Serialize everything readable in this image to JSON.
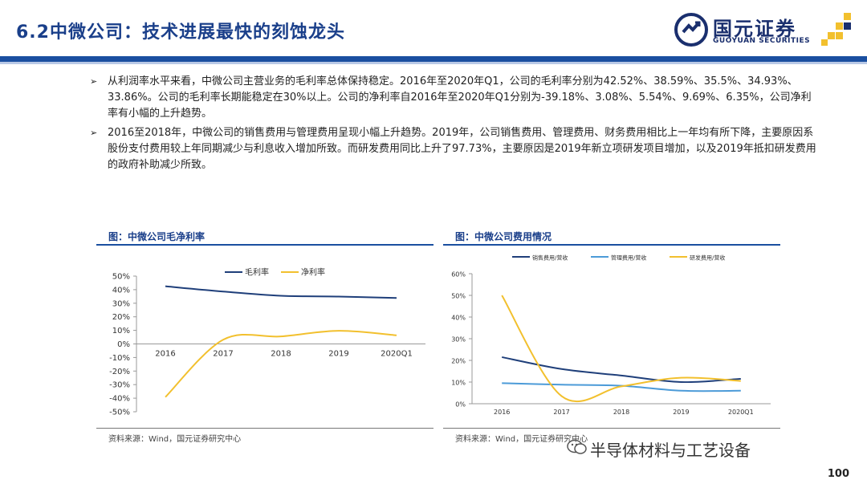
{
  "header": {
    "title": "6.2中微公司：技术进展最快的刻蚀龙头",
    "logo_cn": "国元证券",
    "logo_en": "GUOYUAN SECURITIES"
  },
  "bullets": [
    "从利润率水平来看，中微公司主营业务的毛利率总体保持稳定。2016年至2020年Q1，公司的毛利率分别为42.52%、38.59%、35.5%、34.93%、33.86%。公司的毛利率长期能稳定在30%以上。公司的净利率自2016年至2020年Q1分别为-39.18%、3.08%、5.54%、9.69%、6.35%，公司净利率有小幅的上升趋势。",
    "2016至2018年，中微公司的销售费用与管理费用呈现小幅上升趋势。2019年，公司销售费用、管理费用、财务费用相比上一年均有所下降，主要原因系股份支付费用较上年同期减少与利息收入增加所致。而研发费用同比上升了97.73%，主要原因是2019年新立项研发项目增加，以及2019年抵扣研发费用的政府补助减少所致。"
  ],
  "left_caption": "图：中微公司毛净利率",
  "right_caption": "图：中微公司费用情况",
  "left_source": "资料来源：Wind，国元证券研究中心",
  "right_source": "资料来源：Wind，国元证券研究中心",
  "watermark": "半导体材料与工艺设备",
  "page_number": "100",
  "colors": {
    "navy": "#1f3f7a",
    "gold": "#f2c02e",
    "lightblue": "#4c9bd8"
  },
  "chart_data": [
    {
      "type": "line",
      "title": "中微公司毛净利率",
      "categories": [
        "2016",
        "2017",
        "2018",
        "2019",
        "2020Q1"
      ],
      "series": [
        {
          "name": "毛利率",
          "values": [
            42.52,
            38.59,
            35.5,
            34.93,
            33.86
          ]
        },
        {
          "name": "净利率",
          "values": [
            -39.18,
            3.08,
            5.54,
            9.69,
            6.35
          ]
        }
      ],
      "yticks": [
        "50%",
        "40%",
        "30%",
        "20%",
        "10%",
        "0%",
        "-10%",
        "-20%",
        "-30%",
        "-40%",
        "-50%"
      ],
      "ylim": [
        -50,
        50
      ],
      "legend": "top"
    },
    {
      "type": "line",
      "title": "中微公司费用情况",
      "categories": [
        "2016",
        "2017",
        "2018",
        "2019",
        "2020Q1"
      ],
      "series": [
        {
          "name": "销售费用/营收",
          "values": [
            21.5,
            16,
            13,
            10,
            11.5
          ]
        },
        {
          "name": "管理费用/营收",
          "values": [
            9.5,
            8.8,
            8.3,
            6,
            6
          ]
        },
        {
          "name": "研发费用/营收",
          "values": [
            50,
            3.5,
            8,
            12,
            10.5
          ]
        }
      ],
      "yticks": [
        "60%",
        "50%",
        "40%",
        "30%",
        "20%",
        "10%",
        "0%"
      ],
      "ylim": [
        0,
        60
      ],
      "legend": "top"
    }
  ]
}
